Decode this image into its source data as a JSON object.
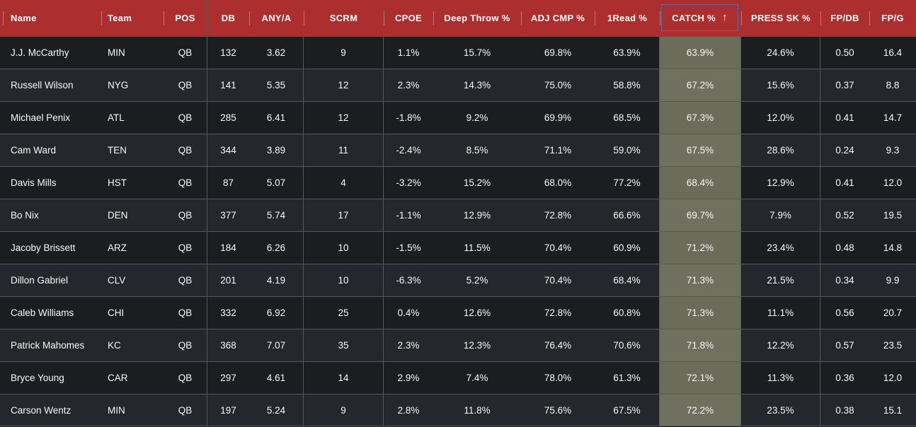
{
  "colors": {
    "header_red": "#ac2e2e",
    "row_dark": "#1b1e21",
    "row_light": "#24272b",
    "grid_line": "#56595c",
    "sorted_column_olive": "#6c6c5a",
    "sorted_column_olive_light": "#70705e",
    "sort_box_border": "#5e6b9d",
    "text": "#f7f7f7"
  },
  "table": {
    "sort": {
      "column": "CATCH %",
      "direction": "ascending",
      "arrow": "↑"
    },
    "columns": [
      {
        "key": "name",
        "label": "Name",
        "group_end": false
      },
      {
        "key": "team",
        "label": "Team",
        "group_end": false
      },
      {
        "key": "pos",
        "label": "POS",
        "group_end": true
      },
      {
        "key": "db",
        "label": "DB",
        "group_end": false
      },
      {
        "key": "anya",
        "label": "ANY/A",
        "group_end": true
      },
      {
        "key": "scrm",
        "label": "SCRM",
        "group_end": true
      },
      {
        "key": "cpoe",
        "label": "CPOE",
        "group_end": false
      },
      {
        "key": "deep",
        "label": "Deep Throw %",
        "group_end": false
      },
      {
        "key": "adjcmp",
        "label": "ADJ CMP %",
        "group_end": false
      },
      {
        "key": "read1",
        "label": "1Read %",
        "group_end": true
      },
      {
        "key": "catch",
        "label": "CATCH %",
        "group_end": true,
        "sorted": true
      },
      {
        "key": "presssk",
        "label": "PRESS SK %",
        "group_end": true
      },
      {
        "key": "fpdb",
        "label": "FP/DB",
        "group_end": false
      },
      {
        "key": "fpg",
        "label": "FP/G",
        "group_end": false
      }
    ],
    "rows": [
      {
        "name": "J.J. McCarthy",
        "team": "MIN",
        "pos": "QB",
        "db": "132",
        "anya": "3.62",
        "scrm": "9",
        "cpoe": "1.1%",
        "deep": "15.7%",
        "adjcmp": "69.8%",
        "read1": "63.9%",
        "catch": "63.9%",
        "presssk": "24.6%",
        "fpdb": "0.50",
        "fpg": "16.4"
      },
      {
        "name": "Russell Wilson",
        "team": "NYG",
        "pos": "QB",
        "db": "141",
        "anya": "5.35",
        "scrm": "12",
        "cpoe": "2.3%",
        "deep": "14.3%",
        "adjcmp": "75.0%",
        "read1": "58.8%",
        "catch": "67.2%",
        "presssk": "15.6%",
        "fpdb": "0.37",
        "fpg": "8.8"
      },
      {
        "name": "Michael Penix",
        "team": "ATL",
        "pos": "QB",
        "db": "285",
        "anya": "6.41",
        "scrm": "12",
        "cpoe": "-1.8%",
        "deep": "9.2%",
        "adjcmp": "69.9%",
        "read1": "68.5%",
        "catch": "67.3%",
        "presssk": "12.0%",
        "fpdb": "0.41",
        "fpg": "14.7"
      },
      {
        "name": "Cam Ward",
        "team": "TEN",
        "pos": "QB",
        "db": "344",
        "anya": "3.89",
        "scrm": "11",
        "cpoe": "-2.4%",
        "deep": "8.5%",
        "adjcmp": "71.1%",
        "read1": "59.0%",
        "catch": "67.5%",
        "presssk": "28.6%",
        "fpdb": "0.24",
        "fpg": "9.3"
      },
      {
        "name": "Davis Mills",
        "team": "HST",
        "pos": "QB",
        "db": "87",
        "anya": "5.07",
        "scrm": "4",
        "cpoe": "-3.2%",
        "deep": "15.2%",
        "adjcmp": "68.0%",
        "read1": "77.2%",
        "catch": "68.4%",
        "presssk": "12.9%",
        "fpdb": "0.41",
        "fpg": "12.0"
      },
      {
        "name": "Bo Nix",
        "team": "DEN",
        "pos": "QB",
        "db": "377",
        "anya": "5.74",
        "scrm": "17",
        "cpoe": "-1.1%",
        "deep": "12.9%",
        "adjcmp": "72.8%",
        "read1": "66.6%",
        "catch": "69.7%",
        "presssk": "7.9%",
        "fpdb": "0.52",
        "fpg": "19.5"
      },
      {
        "name": "Jacoby Brissett",
        "team": "ARZ",
        "pos": "QB",
        "db": "184",
        "anya": "6.26",
        "scrm": "10",
        "cpoe": "-1.5%",
        "deep": "11.5%",
        "adjcmp": "70.4%",
        "read1": "60.9%",
        "catch": "71.2%",
        "presssk": "23.4%",
        "fpdb": "0.48",
        "fpg": "14.8"
      },
      {
        "name": "Dillon Gabriel",
        "team": "CLV",
        "pos": "QB",
        "db": "201",
        "anya": "4.19",
        "scrm": "10",
        "cpoe": "-6.3%",
        "deep": "5.2%",
        "adjcmp": "70.4%",
        "read1": "68.4%",
        "catch": "71.3%",
        "presssk": "21.5%",
        "fpdb": "0.34",
        "fpg": "9.9"
      },
      {
        "name": "Caleb Williams",
        "team": "CHI",
        "pos": "QB",
        "db": "332",
        "anya": "6.92",
        "scrm": "25",
        "cpoe": "0.4%",
        "deep": "12.6%",
        "adjcmp": "72.8%",
        "read1": "60.8%",
        "catch": "71.3%",
        "presssk": "11.1%",
        "fpdb": "0.56",
        "fpg": "20.7"
      },
      {
        "name": "Patrick Mahomes",
        "team": "KC",
        "pos": "QB",
        "db": "368",
        "anya": "7.07",
        "scrm": "35",
        "cpoe": "2.3%",
        "deep": "12.3%",
        "adjcmp": "76.4%",
        "read1": "70.6%",
        "catch": "71.8%",
        "presssk": "12.2%",
        "fpdb": "0.57",
        "fpg": "23.5"
      },
      {
        "name": "Bryce Young",
        "team": "CAR",
        "pos": "QB",
        "db": "297",
        "anya": "4.61",
        "scrm": "14",
        "cpoe": "2.9%",
        "deep": "7.4%",
        "adjcmp": "78.0%",
        "read1": "61.3%",
        "catch": "72.1%",
        "presssk": "11.3%",
        "fpdb": "0.36",
        "fpg": "12.0"
      },
      {
        "name": "Carson Wentz",
        "team": "MIN",
        "pos": "QB",
        "db": "197",
        "anya": "5.24",
        "scrm": "9",
        "cpoe": "2.8%",
        "deep": "11.8%",
        "adjcmp": "75.6%",
        "read1": "67.5%",
        "catch": "72.2%",
        "presssk": "23.5%",
        "fpdb": "0.38",
        "fpg": "15.1"
      }
    ]
  }
}
